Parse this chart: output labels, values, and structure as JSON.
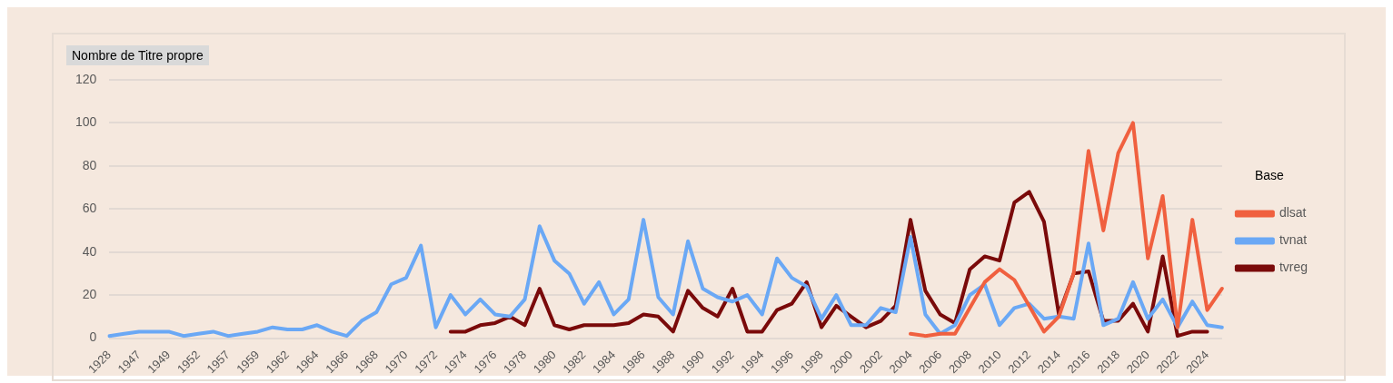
{
  "chart_data": {
    "type": "line",
    "title": "Nombre de Titre propre",
    "legend_title": "Base",
    "legend": "right",
    "grid": "y",
    "marker": "none",
    "categories": [
      "1928",
      null,
      "1947",
      null,
      "1949",
      null,
      "1952",
      null,
      "1957",
      null,
      "1959",
      null,
      "1962",
      null,
      "1964",
      null,
      "1966",
      null,
      "1968",
      null,
      "1970",
      null,
      "1972",
      null,
      "1974",
      null,
      "1976",
      null,
      "1978",
      null,
      "1980",
      null,
      "1982",
      null,
      "1984",
      null,
      "1986",
      null,
      "1988",
      null,
      "1990",
      null,
      "1992",
      null,
      "1994",
      null,
      "1996",
      null,
      "1998",
      null,
      "2000",
      null,
      "2002",
      null,
      "2004",
      null,
      "2006",
      null,
      "2008",
      null,
      "2010",
      null,
      "2012",
      null,
      "2014",
      null,
      "2016",
      null,
      "2018",
      null,
      "2020",
      null,
      "2022",
      null,
      "2024",
      null
    ],
    "ylim": [
      0,
      120
    ],
    "yticks": [
      0,
      20,
      40,
      60,
      80,
      100,
      120
    ],
    "series": [
      {
        "name": "dlsat",
        "color": "#f0603f",
        "values": [
          null,
          null,
          null,
          null,
          null,
          null,
          null,
          null,
          null,
          null,
          null,
          null,
          null,
          null,
          null,
          null,
          null,
          null,
          null,
          null,
          null,
          null,
          null,
          null,
          null,
          null,
          null,
          null,
          null,
          null,
          null,
          null,
          null,
          null,
          null,
          null,
          null,
          null,
          null,
          null,
          null,
          null,
          null,
          null,
          null,
          null,
          null,
          null,
          null,
          null,
          null,
          null,
          null,
          null,
          2,
          1,
          2,
          2,
          14,
          26,
          32,
          27,
          15,
          3,
          10,
          30,
          87,
          50,
          86,
          100,
          37,
          66,
          5,
          55,
          13,
          23
        ]
      },
      {
        "name": "tvnat",
        "color": "#6aa8f5",
        "values": [
          1,
          2,
          3,
          3,
          3,
          1,
          2,
          3,
          1,
          2,
          3,
          5,
          4,
          4,
          6,
          3,
          1,
          8,
          12,
          25,
          28,
          43,
          5,
          20,
          11,
          18,
          11,
          10,
          18,
          52,
          36,
          30,
          16,
          26,
          11,
          18,
          55,
          19,
          11,
          45,
          23,
          19,
          17,
          20,
          11,
          37,
          28,
          24,
          9,
          20,
          6,
          6,
          14,
          12,
          47,
          11,
          2,
          6,
          20,
          25,
          6,
          14,
          16,
          9,
          10,
          9,
          44,
          6,
          9,
          26,
          9,
          18,
          5,
          17,
          6,
          5
        ]
      },
      {
        "name": "tvreg",
        "color": "#7a0a0a",
        "values": [
          null,
          null,
          null,
          null,
          null,
          null,
          null,
          null,
          null,
          null,
          null,
          null,
          null,
          null,
          null,
          null,
          null,
          null,
          null,
          null,
          null,
          null,
          null,
          3,
          3,
          6,
          7,
          10,
          6,
          23,
          6,
          4,
          6,
          6,
          6,
          7,
          11,
          10,
          3,
          22,
          14,
          10,
          23,
          3,
          3,
          13,
          16,
          26,
          5,
          15,
          10,
          5,
          8,
          15,
          55,
          22,
          11,
          7,
          32,
          38,
          36,
          63,
          68,
          54,
          11,
          30,
          31,
          8,
          8,
          16,
          3,
          38,
          1,
          3,
          3,
          null
        ]
      }
    ]
  }
}
